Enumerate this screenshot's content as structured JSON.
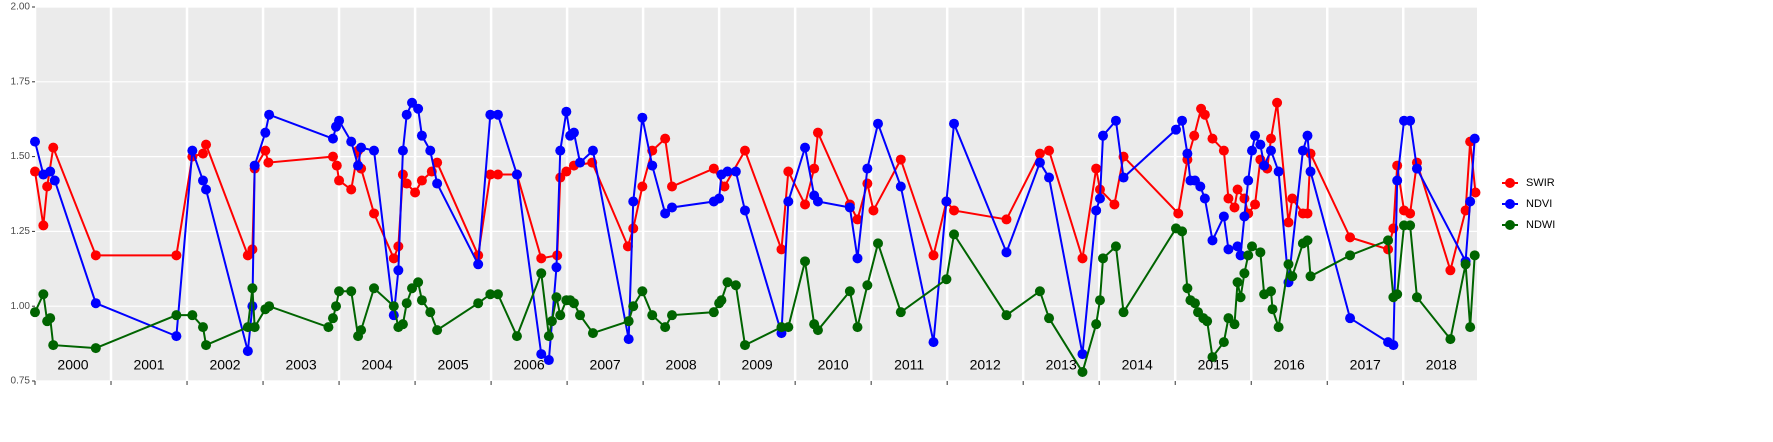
{
  "chart_data": {
    "type": "line",
    "xlim": [
      2000,
      2018.97
    ],
    "xticks": [
      2000,
      2001,
      2002,
      2003,
      2004,
      2005,
      2006,
      2007,
      2008,
      2009,
      2010,
      2011,
      2012,
      2013,
      2014,
      2015,
      2016,
      2017,
      2018
    ],
    "ylim": [
      0.75,
      2.0
    ],
    "yticks": [
      {
        "value": 0.75,
        "label": "0.75"
      },
      {
        "value": 1.0,
        "label": "1.00"
      },
      {
        "value": 1.25,
        "label": "1.25"
      },
      {
        "value": 1.5,
        "label": "1.50"
      },
      {
        "value": 1.75,
        "label": "1.75"
      },
      {
        "value": 2.0,
        "label": "2.00"
      }
    ],
    "grid": true,
    "legend": "right",
    "series": [
      {
        "name": "SWIR",
        "color": "#ff0000",
        "x": [
          2000.0,
          2000.11,
          2000.16,
          2000.24,
          2000.8,
          2001.86,
          2002.07,
          2002.21,
          2002.25,
          2002.8,
          2002.86,
          2002.89,
          2003.03,
          2003.07,
          2003.92,
          2003.97,
          2004.0,
          2004.16,
          2004.25,
          2004.29,
          2004.46,
          2004.72,
          2004.78,
          2004.84,
          2004.89,
          2005.0,
          2005.09,
          2005.22,
          2005.29,
          2005.83,
          2005.99,
          2006.09,
          2006.34,
          2006.66,
          2006.87,
          2006.91,
          2006.99,
          2007.09,
          2007.33,
          2007.8,
          2007.87,
          2007.99,
          2008.12,
          2008.29,
          2008.38,
          2008.93,
          2009.07,
          2009.34,
          2009.82,
          2009.91,
          2010.13,
          2010.25,
          2010.3,
          2010.72,
          2010.82,
          2010.95,
          2011.03,
          2011.39,
          2011.82,
          2011.99,
          2012.09,
          2012.78,
          2013.22,
          2013.34,
          2013.78,
          2013.96,
          2014.01,
          2014.2,
          2014.32,
          2015.04,
          2015.16,
          2015.25,
          2015.34,
          2015.39,
          2015.49,
          2015.64,
          2015.7,
          2015.78,
          2015.82,
          2015.91,
          2015.96,
          2016.05,
          2016.12,
          2016.21,
          2016.26,
          2016.34,
          2016.49,
          2016.54,
          2016.68,
          2016.74,
          2016.78,
          2017.3,
          2017.8,
          2017.87,
          2017.92,
          2018.01,
          2018.09,
          2018.18,
          2018.62,
          2018.82,
          2018.88,
          2018.95
        ],
        "values": [
          1.45,
          1.27,
          1.4,
          1.53,
          1.17,
          1.17,
          1.5,
          1.51,
          1.54,
          1.17,
          1.19,
          1.46,
          1.52,
          1.48,
          1.5,
          1.47,
          1.42,
          1.39,
          1.52,
          1.46,
          1.31,
          1.16,
          1.2,
          1.44,
          1.41,
          1.38,
          1.42,
          1.45,
          1.48,
          1.17,
          1.44,
          1.44,
          1.44,
          1.16,
          1.17,
          1.43,
          1.45,
          1.47,
          1.48,
          1.2,
          1.26,
          1.4,
          1.52,
          1.56,
          1.4,
          1.46,
          1.4,
          1.52,
          1.19,
          1.45,
          1.34,
          1.46,
          1.58,
          1.34,
          1.29,
          1.41,
          1.32,
          1.49,
          1.17,
          1.35,
          1.32,
          1.29,
          1.51,
          1.52,
          1.16,
          1.46,
          1.39,
          1.34,
          1.5,
          1.31,
          1.49,
          1.57,
          1.66,
          1.64,
          1.56,
          1.52,
          1.36,
          1.33,
          1.39,
          1.36,
          1.31,
          1.34,
          1.49,
          1.46,
          1.56,
          1.68,
          1.28,
          1.36,
          1.31,
          1.31,
          1.51,
          1.23,
          1.19,
          1.26,
          1.47,
          1.32,
          1.31,
          1.48,
          1.12,
          1.32,
          1.55,
          1.38
        ]
      },
      {
        "name": "NDVI",
        "color": "#0000ff",
        "x": [
          2000.0,
          2000.11,
          2000.2,
          2000.26,
          2000.8,
          2001.86,
          2002.07,
          2002.21,
          2002.25,
          2002.8,
          2002.86,
          2002.89,
          2003.03,
          2003.08,
          2003.92,
          2003.96,
          2004.0,
          2004.16,
          2004.25,
          2004.29,
          2004.46,
          2004.72,
          2004.78,
          2004.84,
          2004.89,
          2004.96,
          2005.04,
          2005.09,
          2005.2,
          2005.29,
          2005.83,
          2005.99,
          2006.09,
          2006.34,
          2006.66,
          2006.76,
          2006.86,
          2006.91,
          2006.99,
          2007.04,
          2007.09,
          2007.17,
          2007.34,
          2007.81,
          2007.87,
          2007.99,
          2008.12,
          2008.29,
          2008.38,
          2008.93,
          2009.0,
          2009.03,
          2009.11,
          2009.22,
          2009.34,
          2009.82,
          2009.91,
          2010.13,
          2010.25,
          2010.3,
          2010.72,
          2010.82,
          2010.95,
          2011.09,
          2011.39,
          2011.82,
          2011.99,
          2012.09,
          2012.78,
          2013.22,
          2013.34,
          2013.78,
          2013.96,
          2014.01,
          2014.05,
          2014.22,
          2014.32,
          2015.01,
          2015.09,
          2015.16,
          2015.2,
          2015.26,
          2015.33,
          2015.39,
          2015.49,
          2015.64,
          2015.7,
          2015.82,
          2015.86,
          2015.91,
          2015.96,
          2016.01,
          2016.05,
          2016.12,
          2016.17,
          2016.26,
          2016.36,
          2016.49,
          2016.68,
          2016.74,
          2016.78,
          2017.3,
          2017.8,
          2017.87,
          2017.92,
          2018.01,
          2018.09,
          2018.18,
          2018.82,
          2018.88,
          2018.94
        ],
        "values": [
          1.55,
          1.44,
          1.45,
          1.42,
          1.01,
          0.9,
          1.52,
          1.42,
          1.39,
          0.85,
          1.0,
          1.47,
          1.58,
          1.64,
          1.56,
          1.6,
          1.62,
          1.55,
          1.47,
          1.53,
          1.52,
          0.97,
          1.12,
          1.52,
          1.64,
          1.68,
          1.66,
          1.57,
          1.52,
          1.41,
          1.14,
          1.64,
          1.64,
          1.44,
          0.84,
          0.82,
          1.13,
          1.52,
          1.65,
          1.57,
          1.58,
          1.48,
          1.52,
          0.89,
          1.35,
          1.63,
          1.47,
          1.31,
          1.33,
          1.35,
          1.36,
          1.44,
          1.45,
          1.45,
          1.32,
          0.91,
          1.35,
          1.53,
          1.37,
          1.35,
          1.33,
          1.16,
          1.46,
          1.61,
          1.4,
          0.88,
          1.35,
          1.61,
          1.18,
          1.48,
          1.43,
          0.84,
          1.32,
          1.36,
          1.57,
          1.62,
          1.43,
          1.59,
          1.62,
          1.51,
          1.42,
          1.42,
          1.4,
          1.36,
          1.22,
          1.3,
          1.19,
          1.2,
          1.17,
          1.3,
          1.42,
          1.52,
          1.57,
          1.54,
          1.47,
          1.52,
          1.45,
          1.08,
          1.52,
          1.57,
          1.45,
          0.96,
          0.88,
          0.87,
          1.42,
          1.62,
          1.62,
          1.46,
          1.15,
          1.35,
          1.56
        ]
      },
      {
        "name": "NDWI",
        "color": "#006400",
        "x": [
          2000.0,
          2000.11,
          2000.16,
          2000.2,
          2000.24,
          2000.8,
          2001.86,
          2002.07,
          2002.21,
          2002.25,
          2002.8,
          2002.86,
          2002.89,
          2003.03,
          2003.08,
          2003.86,
          2003.92,
          2003.96,
          2004.0,
          2004.16,
          2004.25,
          2004.29,
          2004.46,
          2004.72,
          2004.78,
          2004.84,
          2004.89,
          2004.96,
          2005.04,
          2005.09,
          2005.2,
          2005.29,
          2005.83,
          2005.99,
          2006.09,
          2006.34,
          2006.66,
          2006.76,
          2006.8,
          2006.86,
          2006.91,
          2006.99,
          2007.04,
          2007.09,
          2007.17,
          2007.34,
          2007.81,
          2007.87,
          2007.99,
          2008.12,
          2008.29,
          2008.38,
          2008.93,
          2009.0,
          2009.03,
          2009.11,
          2009.22,
          2009.34,
          2009.82,
          2009.91,
          2010.13,
          2010.25,
          2010.3,
          2010.72,
          2010.82,
          2010.95,
          2011.09,
          2011.39,
          2011.99,
          2012.09,
          2012.78,
          2013.22,
          2013.34,
          2013.78,
          2013.96,
          2014.01,
          2014.05,
          2014.22,
          2014.32,
          2015.01,
          2015.09,
          2015.16,
          2015.2,
          2015.26,
          2015.3,
          2015.37,
          2015.42,
          2015.49,
          2015.64,
          2015.7,
          2015.78,
          2015.82,
          2015.86,
          2015.91,
          2015.96,
          2016.01,
          2016.12,
          2016.17,
          2016.26,
          2016.28,
          2016.36,
          2016.49,
          2016.54,
          2016.68,
          2016.74,
          2016.78,
          2017.3,
          2017.8,
          2017.87,
          2017.92,
          2018.01,
          2018.09,
          2018.18,
          2018.62,
          2018.82,
          2018.88,
          2018.94
        ],
        "values": [
          0.98,
          1.04,
          0.95,
          0.96,
          0.87,
          0.86,
          0.97,
          0.97,
          0.93,
          0.87,
          0.93,
          1.06,
          0.93,
          0.99,
          1.0,
          0.93,
          0.96,
          1.0,
          1.05,
          1.05,
          0.9,
          0.92,
          1.06,
          1.0,
          0.93,
          0.94,
          1.01,
          1.06,
          1.08,
          1.02,
          0.98,
          0.92,
          1.01,
          1.04,
          1.04,
          0.9,
          1.11,
          0.9,
          0.95,
          1.03,
          0.97,
          1.02,
          1.02,
          1.01,
          0.97,
          0.91,
          0.95,
          1.0,
          1.05,
          0.97,
          0.93,
          0.97,
          0.98,
          1.01,
          1.02,
          1.08,
          1.07,
          0.87,
          0.93,
          0.93,
          1.15,
          0.94,
          0.92,
          1.05,
          0.93,
          1.07,
          1.21,
          0.98,
          1.09,
          1.24,
          0.97,
          1.05,
          0.96,
          0.78,
          0.94,
          1.02,
          1.16,
          1.2,
          0.98,
          1.26,
          1.25,
          1.06,
          1.02,
          1.01,
          0.98,
          0.96,
          0.95,
          0.83,
          0.88,
          0.96,
          0.94,
          1.08,
          1.03,
          1.11,
          1.17,
          1.2,
          1.18,
          1.04,
          1.05,
          0.99,
          0.93,
          1.14,
          1.1,
          1.21,
          1.22,
          1.1,
          1.17,
          1.22,
          1.03,
          1.04,
          1.27,
          1.27,
          1.03,
          0.89,
          1.14,
          0.93,
          1.17
        ]
      }
    ]
  }
}
